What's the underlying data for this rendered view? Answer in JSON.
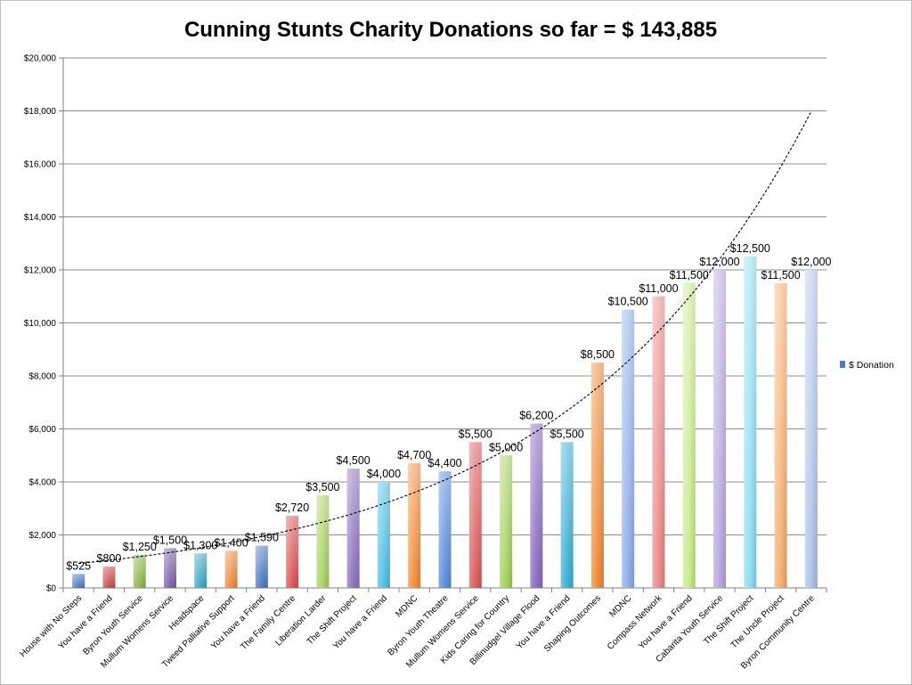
{
  "chart_data": {
    "type": "bar",
    "title": "Cunning Stunts Charity Donations so far = $ 143,885",
    "xlabel": "",
    "ylabel": "",
    "ylim": [
      0,
      20000
    ],
    "yticks": [
      "$0",
      "$2,000",
      "$4,000",
      "$6,000",
      "$8,000",
      "$10,000",
      "$12,000",
      "$14,000",
      "$16,000",
      "$18,000",
      "$20,000"
    ],
    "grid": true,
    "legend": {
      "position": "right",
      "entries": [
        "$ Donation"
      ]
    },
    "trendline": {
      "type": "exponential",
      "style": "dashed"
    },
    "categories": [
      "House with No Steps",
      "You have a Friend",
      "Byron Youth Service",
      "Mullum Womens Service",
      "Headspace",
      "Tweed Palliative Support",
      "You have a Friend",
      "The Family Centre",
      "Liberation Larder",
      "The Shift Project",
      "You have a Friend",
      "MDNC",
      "Byron Youth Theatre",
      "Mullum Womens Service",
      "Kids Caring for Country",
      "Billinudgel Village Flood",
      "You have a Friend",
      "Shaping Outcomes",
      "MDNC",
      "Compass Network",
      "You have a Friend",
      "Cabarita Youth Service",
      "The Shift Project",
      "The Uncle Project",
      "Byron Community Centre"
    ],
    "series": [
      {
        "name": "$ Donation",
        "values": [
          525,
          800,
          1250,
          1500,
          1300,
          1400,
          1590,
          2720,
          3500,
          4500,
          4000,
          4700,
          4400,
          5500,
          5000,
          6200,
          5500,
          8500,
          10500,
          11000,
          11500,
          12000,
          12500,
          11500,
          12000
        ],
        "labels": [
          "$525",
          "$800",
          "$1,250",
          "$1,500",
          "$1,300",
          "$1,400",
          "$1,590",
          "$2,720",
          "$3,500",
          "$4,500",
          "$4,000",
          "$4,700",
          "$4,400",
          "$5,500",
          "$5,000",
          "$6,200",
          "$5,500",
          "$8,500",
          "$10,500",
          "$11,000",
          "$11,500",
          "$12,000",
          "$12,500",
          "$11,500",
          "$12,000"
        ],
        "colors": [
          "#4a7ac8",
          "#cc4b4b",
          "#8fb84a",
          "#7d63a8",
          "#3aa9c4",
          "#f08b3b",
          "#4a7ac8",
          "#e05555",
          "#a8d462",
          "#8e73bf",
          "#4ec3e8",
          "#f5903a",
          "#5a8fe0",
          "#e25c5c",
          "#a4d65a",
          "#8a6bc4",
          "#3ab3d8",
          "#f28c36",
          "#8fb0ee",
          "#f08a8a",
          "#c8ee8a",
          "#b9a8e4",
          "#8ce0f4",
          "#f8b070",
          "#b0c6ee"
        ]
      }
    ]
  }
}
